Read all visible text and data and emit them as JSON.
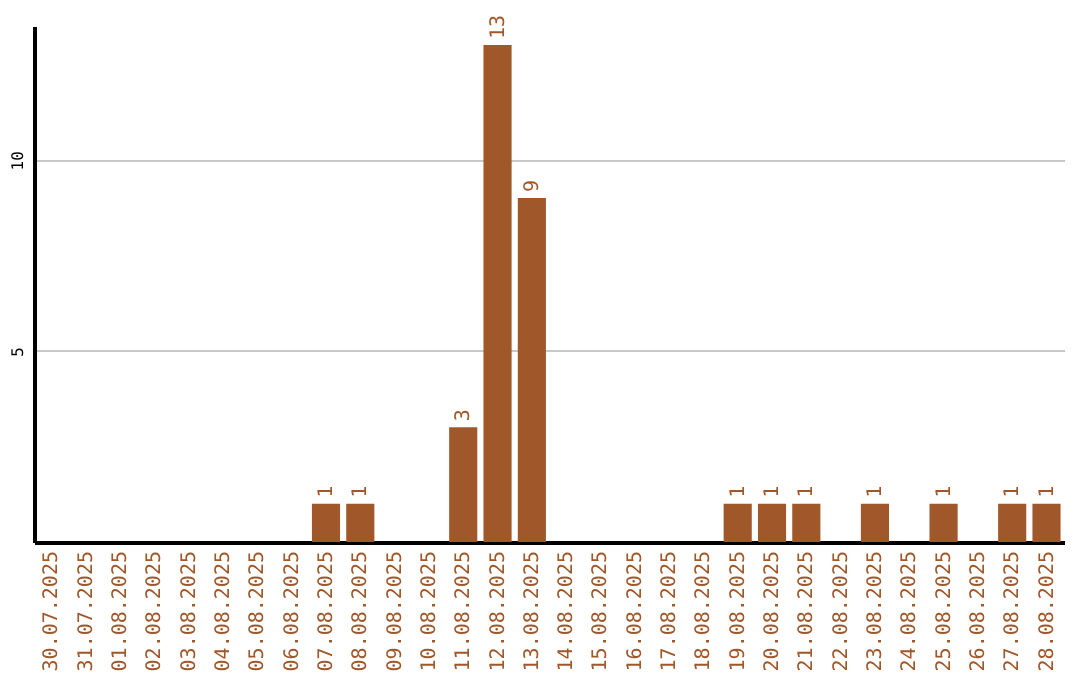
{
  "chart_data": {
    "type": "bar",
    "categories": [
      "30.07.2025",
      "31.07.2025",
      "01.08.2025",
      "02.08.2025",
      "03.08.2025",
      "04.08.2025",
      "05.08.2025",
      "06.08.2025",
      "07.08.2025",
      "08.08.2025",
      "09.08.2025",
      "10.08.2025",
      "11.08.2025",
      "12.08.2025",
      "13.08.2025",
      "14.08.2025",
      "15.08.2025",
      "16.08.2025",
      "17.08.2025",
      "18.08.2025",
      "19.08.2025",
      "20.08.2025",
      "21.08.2025",
      "22.08.2025",
      "23.08.2025",
      "24.08.2025",
      "25.08.2025",
      "26.08.2025",
      "27.08.2025",
      "28.08.2025"
    ],
    "values": [
      null,
      null,
      null,
      null,
      null,
      null,
      null,
      null,
      1,
      1,
      null,
      null,
      3,
      13,
      9,
      null,
      null,
      null,
      null,
      null,
      1,
      1,
      1,
      null,
      1,
      null,
      1,
      null,
      1,
      1
    ],
    "color": "#a0572a",
    "ylim": [
      0,
      13.5
    ],
    "yticks": [
      5,
      10
    ],
    "grid": "y",
    "data_labels": true
  }
}
